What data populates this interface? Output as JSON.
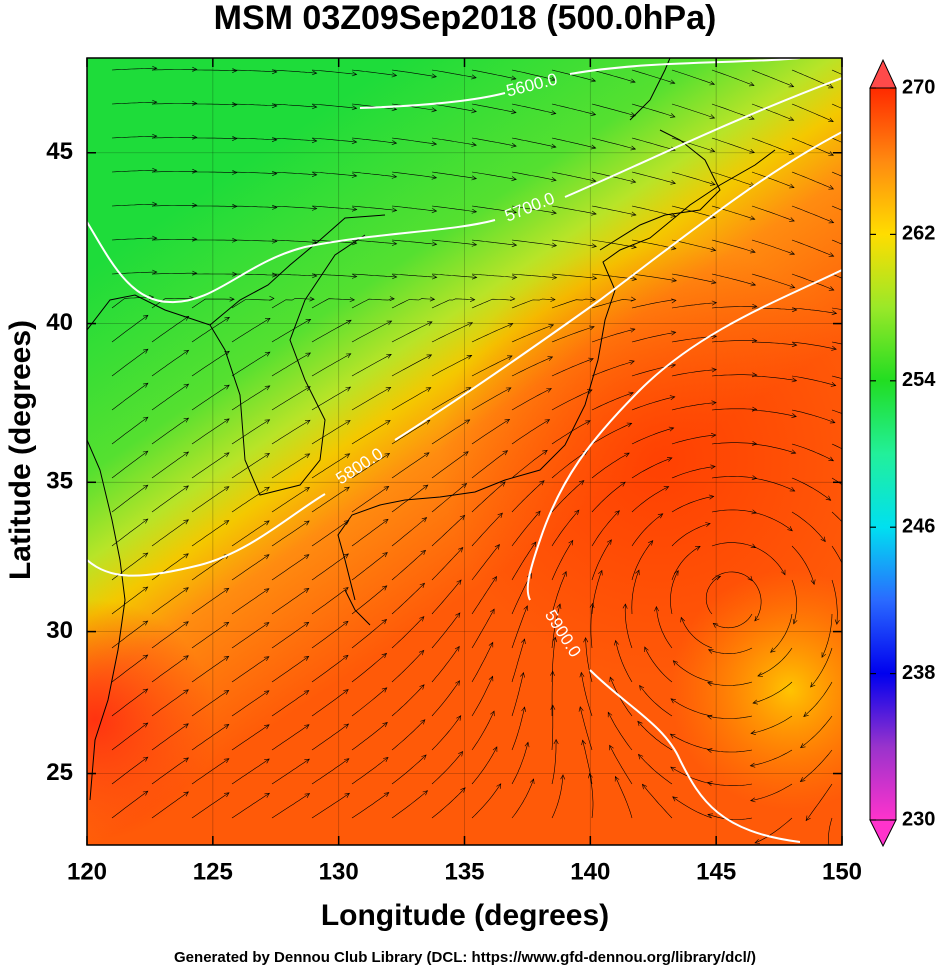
{
  "title": "MSM 03Z09Sep2018 (500.0hPa)",
  "x_label": "Longitude (degrees)",
  "y_label": "Latitude  (degrees)",
  "footer": "Generated by Dennou Club Library (DCL: https://www.gfd-dennou.org/library/dcl/)",
  "map": {
    "projection": "mercator",
    "xlim": [
      120,
      150
    ],
    "ylim": [
      22.4,
      47.6
    ],
    "xticks": [
      120,
      125,
      130,
      135,
      140,
      145,
      150
    ],
    "yticks": [
      25,
      30,
      35,
      40,
      45
    ],
    "grid": true,
    "contour_labels": [
      "5600.0",
      "5700.0",
      "5800.0",
      "5900.0"
    ]
  },
  "colorbar": {
    "lim": [
      230,
      270
    ],
    "ticks": [
      230,
      238,
      246,
      254,
      262,
      270
    ]
  }
}
